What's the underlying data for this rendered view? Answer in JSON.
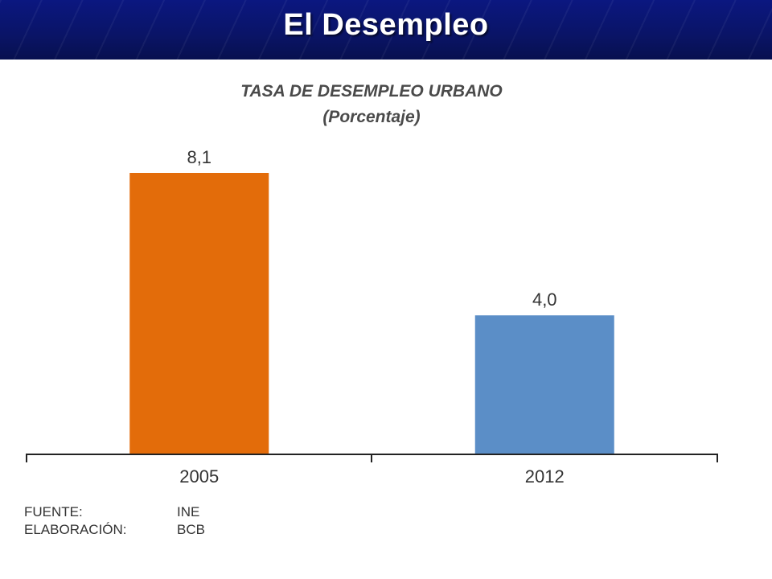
{
  "slide": {
    "title": "El Desempleo",
    "header_color": "#0a1466"
  },
  "chart_data": {
    "type": "bar",
    "title": "TASA DE DESEMPLEO URBANO",
    "subtitle": "(Porcentaje)",
    "categories": [
      "2005",
      "2012"
    ],
    "values": [
      8.1,
      4.0
    ],
    "value_labels": [
      "8,1",
      "4,0"
    ],
    "colors": [
      "#e36c0a",
      "#5b8ec7"
    ],
    "ylim": [
      0,
      10
    ],
    "xlabel": "",
    "ylabel": "",
    "grid": false
  },
  "footnote": {
    "source_key": "FUENTE:",
    "source_value": "INE",
    "elaboration_key": "ELABORACIÓN:",
    "elaboration_value": "BCB"
  }
}
